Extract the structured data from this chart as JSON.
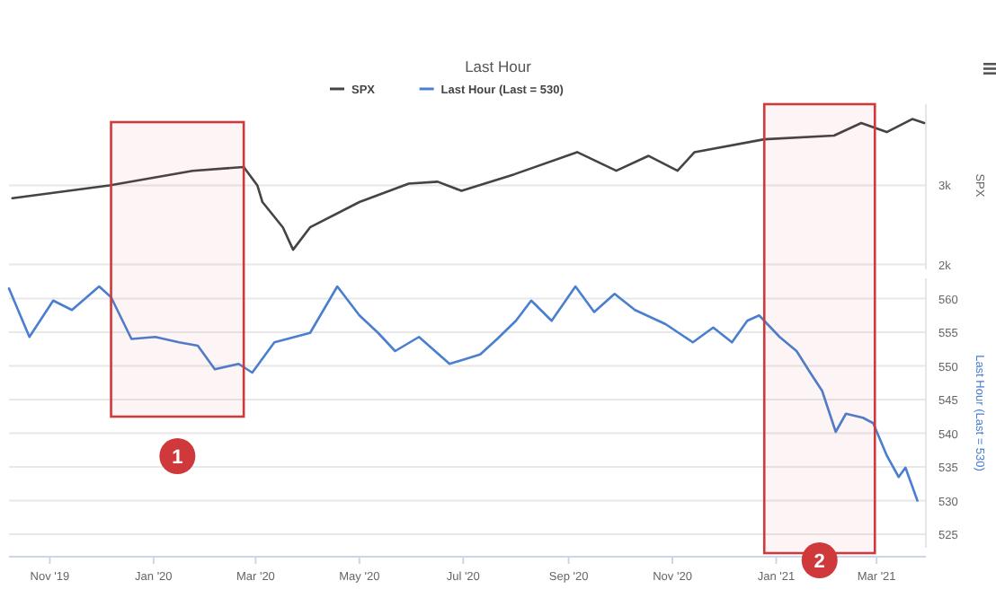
{
  "chart_data": [
    {
      "type": "line",
      "title": "Last Hour",
      "ylabel": "SPX",
      "log": "y",
      "grid": "y",
      "legend": "top",
      "tick_labels": "y",
      "xlim": [
        "2019-10-08",
        "2021-03-30"
      ],
      "ylim": [
        1950,
        4550
      ],
      "yticks": [
        {
          "value": 2000,
          "label": "2k"
        },
        {
          "value": 3000,
          "label": "3k"
        }
      ],
      "series": [
        {
          "name": "SPX",
          "color": "#444444",
          "x": [
            "2019-10-10",
            "2019-12-06",
            "2020-01-24",
            "2020-02-23",
            "2020-03-02",
            "2020-03-05",
            "2020-03-17",
            "2020-03-23",
            "2020-04-02",
            "2020-05-01",
            "2020-05-30",
            "2020-06-16",
            "2020-06-30",
            "2020-07-31",
            "2020-09-06",
            "2020-09-29",
            "2020-10-18",
            "2020-11-04",
            "2020-11-14",
            "2020-12-25",
            "2021-02-04",
            "2021-02-20",
            "2021-03-07",
            "2021-03-22",
            "2021-03-29"
          ],
          "values": [
            2808,
            3000,
            3233,
            3296,
            3000,
            2754,
            2419,
            2157,
            2419,
            2754,
            3028,
            3057,
            2917,
            3175,
            3558,
            3234,
            3491,
            3234,
            3558,
            3800,
            3872,
            4131,
            3943,
            4216,
            4131
          ]
        }
      ]
    },
    {
      "type": "line",
      "ylabel": "Last Hour (Last = 530)",
      "grid": "y",
      "legend": "top",
      "xlim": [
        "2019-10-08",
        "2021-03-30"
      ],
      "xticks": [
        {
          "value": "2019-11-01",
          "label": "Nov '19"
        },
        {
          "value": "2020-01-01",
          "label": "Jan '20"
        },
        {
          "value": "2020-03-01",
          "label": "Mar '20"
        },
        {
          "value": "2020-05-01",
          "label": "May '20"
        },
        {
          "value": "2020-07-01",
          "label": "Jul '20"
        },
        {
          "value": "2020-09-01",
          "label": "Sep '20"
        },
        {
          "value": "2020-11-01",
          "label": "Nov '20"
        },
        {
          "value": "2021-01-01",
          "label": "Jan '21"
        },
        {
          "value": "2021-03-01",
          "label": "Mar '21"
        }
      ],
      "ylim": [
        523,
        563
      ],
      "yticks": [
        525,
        530,
        535,
        540,
        545,
        550,
        555,
        560
      ],
      "series": [
        {
          "name": "Last Hour (Last = 530)",
          "color": "#4a7fcf",
          "x": [
            "2019-10-08",
            "2019-10-20",
            "2019-11-03",
            "2019-11-14",
            "2019-11-30",
            "2019-12-07",
            "2019-12-19",
            "2020-01-02",
            "2020-01-16",
            "2020-01-27",
            "2020-02-06",
            "2020-02-20",
            "2020-02-28",
            "2020-03-12",
            "2020-04-02",
            "2020-04-18",
            "2020-05-01",
            "2020-05-12",
            "2020-05-22",
            "2020-06-05",
            "2020-06-23",
            "2020-07-11",
            "2020-07-21",
            "2020-08-01",
            "2020-08-10",
            "2020-08-22",
            "2020-09-05",
            "2020-09-16",
            "2020-09-28",
            "2020-10-10",
            "2020-10-28",
            "2020-11-13",
            "2020-11-25",
            "2020-12-06",
            "2020-12-15",
            "2020-12-22",
            "2021-01-03",
            "2021-01-13",
            "2021-01-21",
            "2021-01-28",
            "2021-02-05",
            "2021-02-11",
            "2021-02-21",
            "2021-02-27",
            "2021-03-07",
            "2021-03-14",
            "2021-03-18",
            "2021-03-25"
          ],
          "values": [
            561.5,
            554.3,
            559.7,
            558.3,
            561.8,
            560.2,
            554,
            554.3,
            553.5,
            553,
            549.5,
            550.3,
            549,
            553.5,
            554.9,
            561.8,
            557.5,
            554.9,
            552.2,
            554.3,
            550.3,
            551.7,
            554,
            556.7,
            559.7,
            556.7,
            561.8,
            558,
            560.7,
            558.3,
            556.2,
            553.5,
            555.7,
            553.5,
            556.7,
            557.5,
            554.3,
            552.2,
            549,
            546.3,
            540.2,
            542.9,
            542.3,
            541.5,
            536.7,
            533.5,
            534.9,
            530
          ]
        }
      ],
      "bands": [
        {
          "axis": "x",
          "from": "2019-12-07",
          "to": "2020-02-23",
          "label": "1",
          "color": "#d0393b"
        },
        {
          "axis": "x",
          "from": "2020-12-25",
          "to": "2021-02-28",
          "label": "2",
          "color": "#d0393b"
        }
      ]
    }
  ]
}
